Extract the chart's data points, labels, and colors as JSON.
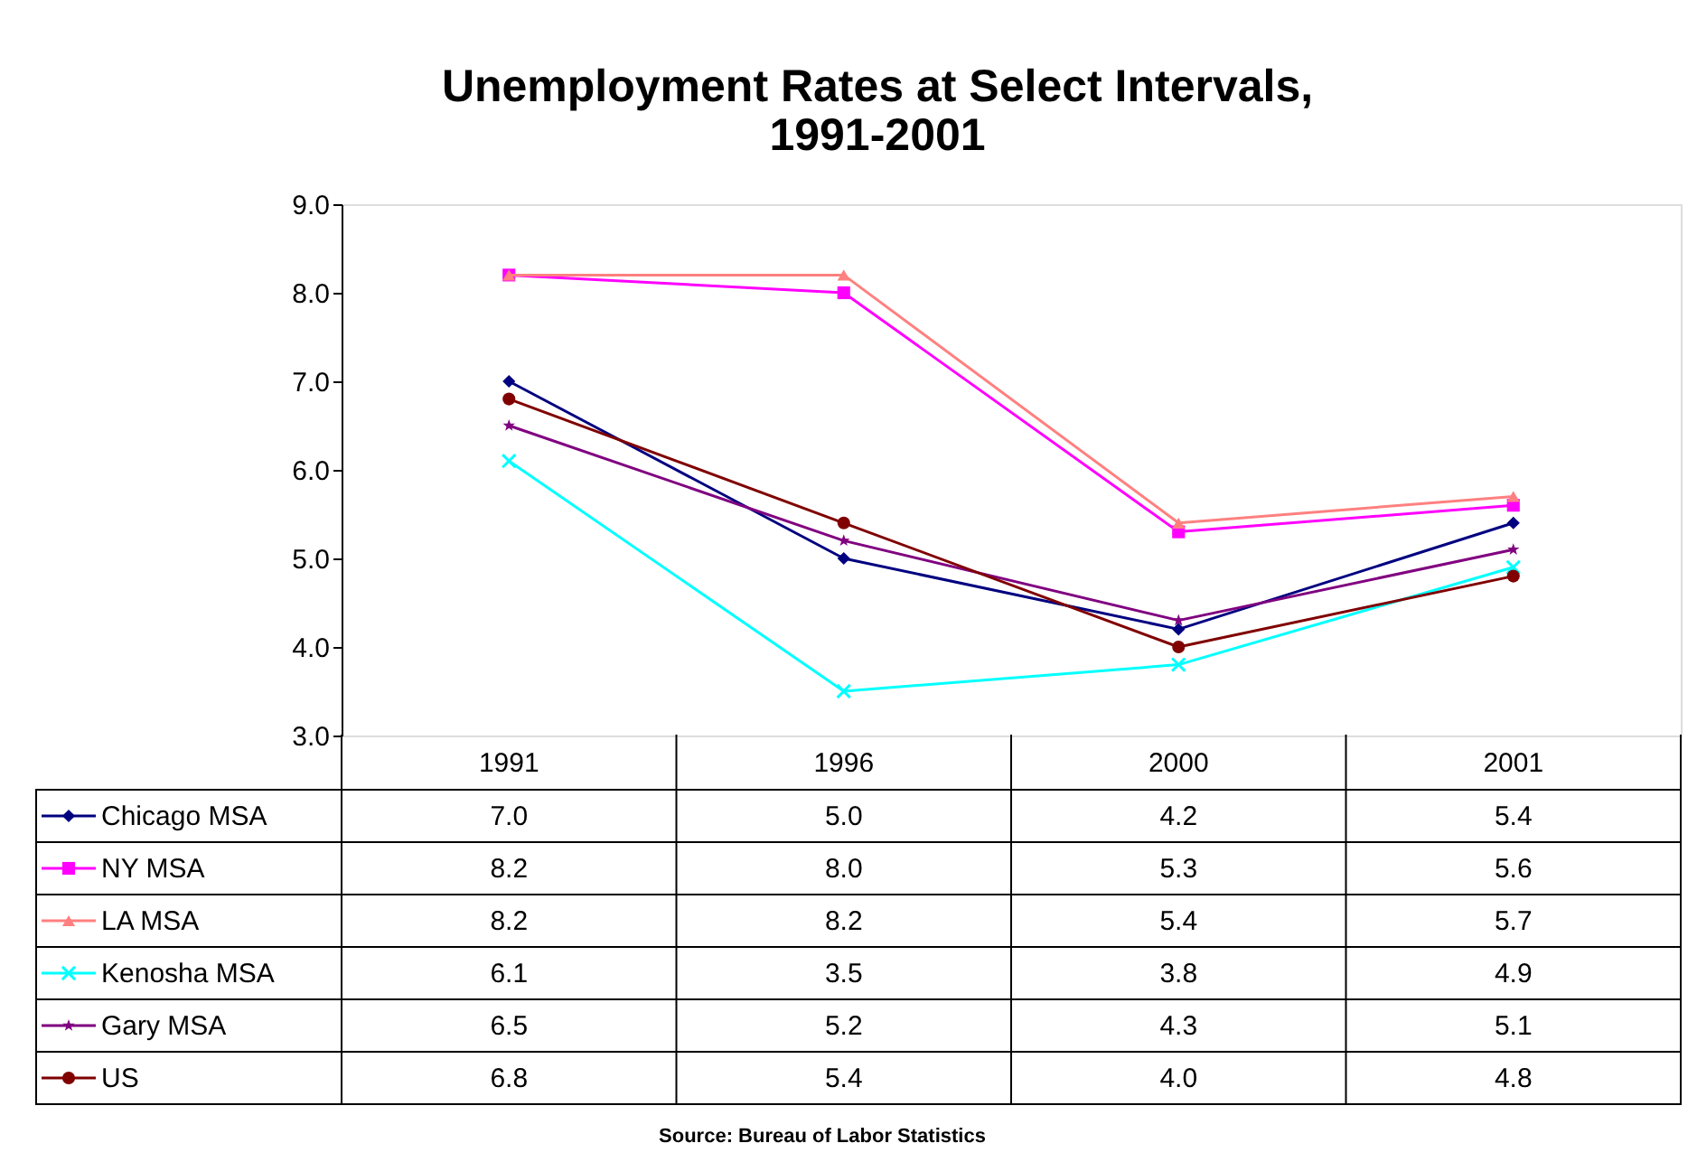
{
  "chart_data": {
    "type": "line",
    "title": [
      "Unemployment Rates at Select Intervals,",
      "1991-2001"
    ],
    "categories": [
      "1991",
      "1996",
      "2000",
      "2001"
    ],
    "series": [
      {
        "name": "Chicago MSA",
        "color": "#000080",
        "marker": "diamond",
        "values": [
          7.0,
          5.0,
          4.2,
          5.4
        ],
        "value_labels": [
          "7.0",
          "5.0",
          "4.2",
          "5.4"
        ]
      },
      {
        "name": "NY MSA",
        "color": "#ff00ff",
        "marker": "square",
        "values": [
          8.2,
          8.0,
          5.3,
          5.6
        ],
        "value_labels": [
          "8.2",
          "8.0",
          "5.3",
          "5.6"
        ]
      },
      {
        "name": "LA MSA",
        "color": "#ff8080",
        "marker": "triangle",
        "values": [
          8.2,
          8.2,
          5.4,
          5.7
        ],
        "value_labels": [
          "8.2",
          "8.2",
          "5.4",
          "5.7"
        ]
      },
      {
        "name": "Kenosha MSA",
        "color": "#00ffff",
        "marker": "cross",
        "values": [
          6.1,
          3.5,
          3.8,
          4.9
        ],
        "value_labels": [
          "6.1",
          "3.5",
          "3.8",
          "4.9"
        ]
      },
      {
        "name": "Gary MSA",
        "color": "#800080",
        "marker": "star",
        "values": [
          6.5,
          5.2,
          4.3,
          5.1
        ],
        "value_labels": [
          "6.5",
          "5.2",
          "4.3",
          "5.1"
        ]
      },
      {
        "name": "US",
        "color": "#800000",
        "marker": "circle",
        "values": [
          6.8,
          5.4,
          4.0,
          4.8
        ],
        "value_labels": [
          "6.8",
          "5.4",
          "4.0",
          "4.8"
        ]
      }
    ],
    "ylim": [
      3,
      9
    ],
    "yticks": [
      {
        "value": 3,
        "label": "3.0"
      },
      {
        "value": 4,
        "label": "4.0"
      },
      {
        "value": 5,
        "label": "5.0"
      },
      {
        "value": 6,
        "label": "6.0"
      },
      {
        "value": 7,
        "label": "7.0"
      },
      {
        "value": 8,
        "label": "8.0"
      },
      {
        "value": 9,
        "label": "9.0"
      }
    ],
    "grid": false,
    "legend": "bottom",
    "line_style": "solid",
    "annotations": [
      "Source: Bureau of Labor Statistics"
    ]
  }
}
